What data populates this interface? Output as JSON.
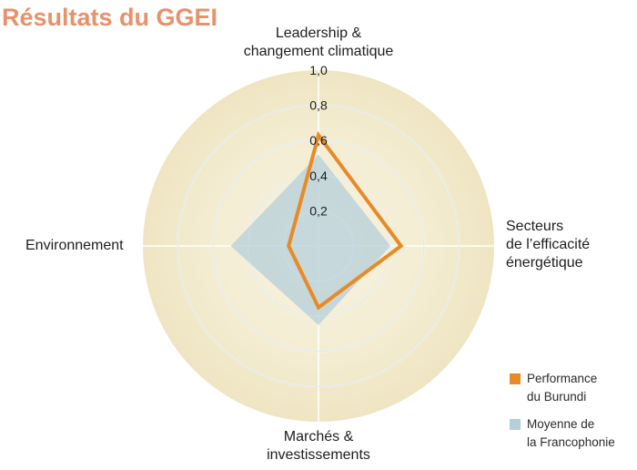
{
  "title": "Résultats du GGEI",
  "axes": {
    "top": "Leadership &\nchangement climatique",
    "right": "Secteurs\nde l’efficacité\nénergétique",
    "bottom": "Marchés &\ninvestissements",
    "left": "Environnement"
  },
  "ticks": [
    "0,2",
    "0,4",
    "0,6",
    "0,8",
    "1,0"
  ],
  "legend": [
    {
      "label": "Performance\ndu Burundi",
      "color": "#e88a25"
    },
    {
      "label": "Moyenne de\nla Francophonie",
      "color": "#b5cfd9"
    }
  ],
  "chart_data": {
    "type": "radar",
    "title": "Résultats du GGEI",
    "categories": [
      "Leadership & changement climatique",
      "Secteurs de l’efficacité énergétique",
      "Marchés & investissements",
      "Environnement"
    ],
    "range": [
      0,
      1.0
    ],
    "tick_values": [
      0.2,
      0.4,
      0.6,
      0.8,
      1.0
    ],
    "tick_labels": [
      "0,2",
      "0,4",
      "0,6",
      "0,8",
      "1,0"
    ],
    "grid": true,
    "legend_position": "bottom-right",
    "series": [
      {
        "name": "Performance du Burundi",
        "values": [
          0.63,
          0.47,
          0.35,
          0.17
        ],
        "style": "line",
        "color": "#e88a25"
      },
      {
        "name": "Moyenne de la Francophonie",
        "values": [
          0.52,
          0.41,
          0.45,
          0.5
        ],
        "style": "area",
        "color": "#b5cfd9"
      }
    ]
  }
}
